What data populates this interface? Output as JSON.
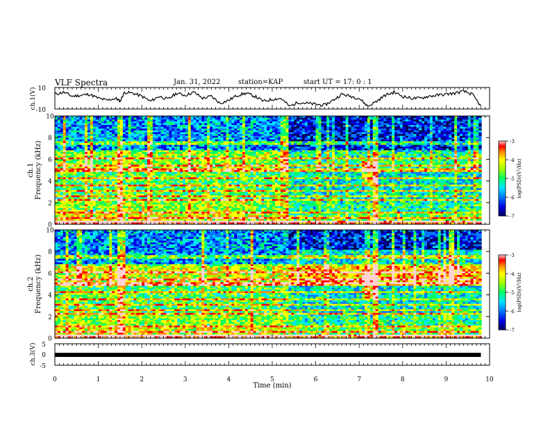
{
  "header": {
    "title": "VLF Spectra",
    "date": "Jan. 31, 2022",
    "station": "station=KAP",
    "start": "start UT = 17: 0 : 1"
  },
  "chart_data": [
    {
      "type": "line",
      "panel": "ch1",
      "ylabel": "ch.1(V)",
      "ylim": [
        -10,
        10
      ],
      "yticks": [
        "10",
        "-10"
      ],
      "xlim": [
        0,
        10
      ],
      "series": [
        {
          "x": [
            0,
            0.2,
            0.4,
            0.6,
            0.8,
            1.0,
            1.2,
            1.4,
            1.5,
            1.6,
            1.8,
            2.0,
            2.2,
            2.4,
            2.6,
            2.8,
            3.0,
            3.2,
            3.4,
            3.6,
            3.8,
            4.0,
            4.2,
            4.4,
            4.6,
            4.8,
            5.0,
            5.2,
            5.4,
            5.6,
            5.8,
            6.0,
            6.2,
            6.4,
            6.6,
            6.8,
            7.0,
            7.2,
            7.4,
            7.6,
            7.8,
            8.0,
            8.2,
            8.4,
            8.6,
            8.8,
            9.0,
            9.2,
            9.4,
            9.6,
            9.8
          ],
          "y": [
            4,
            6,
            2,
            3,
            4,
            0,
            -2,
            0,
            -3,
            6,
            5,
            2,
            -3,
            2,
            -1,
            5,
            3,
            6,
            0,
            2,
            -5,
            -2,
            3,
            5,
            2,
            -3,
            -1,
            0,
            -8,
            -4,
            -5,
            -6,
            -7,
            -2,
            4,
            2,
            0,
            -8,
            -3,
            3,
            6,
            2,
            0,
            0,
            2,
            3,
            4,
            5,
            7,
            4,
            -8
          ]
        }
      ]
    },
    {
      "type": "heatmap",
      "panel": "ch1",
      "ylabel_lines": [
        "ch.1",
        "Frequency (kHz)"
      ],
      "ylim": [
        0,
        10
      ],
      "yticks": [
        "0",
        "2",
        "4",
        "6",
        "8",
        "10"
      ],
      "xlim": [
        0,
        10
      ],
      "colorbar": {
        "label": "log(PSD)(V²/Hz)",
        "range": [
          -7,
          -3
        ],
        "ticks": [
          "-3",
          "-4",
          "-5",
          "-6",
          "-7"
        ]
      }
    },
    {
      "type": "heatmap",
      "panel": "ch2",
      "ylabel_lines": [
        "ch.2",
        "Frequency (kHz)"
      ],
      "ylim": [
        0,
        10
      ],
      "yticks": [
        "0",
        "2",
        "4",
        "6",
        "8",
        "10"
      ],
      "xlim": [
        0,
        10
      ],
      "colorbar": {
        "label": "log(PSD)(V²/Hz)",
        "range": [
          -7,
          -3
        ],
        "ticks": [
          "-3",
          "-4",
          "-5",
          "-6",
          "-7"
        ]
      }
    },
    {
      "type": "line",
      "panel": "ch3",
      "ylabel": "ch.3(V)",
      "ylim": [
        -5,
        5
      ],
      "yticks": [
        "5",
        "0",
        "-5"
      ],
      "xlim": [
        0,
        10
      ],
      "xlabel": "Time (min)",
      "xticks": [
        "0",
        "1",
        "2",
        "3",
        "4",
        "5",
        "6",
        "7",
        "8",
        "9",
        "10"
      ],
      "series": [
        {
          "x": [
            0,
            9.8
          ],
          "y": [
            0,
            0
          ]
        }
      ]
    }
  ],
  "colors": {
    "line": "#000000",
    "colormap": [
      "#00005a",
      "#0000e6",
      "#0078ff",
      "#00e6ff",
      "#00ff64",
      "#9bff00",
      "#ffff00",
      "#ff8c00",
      "#ff0000",
      "#ffd2d2"
    ]
  }
}
